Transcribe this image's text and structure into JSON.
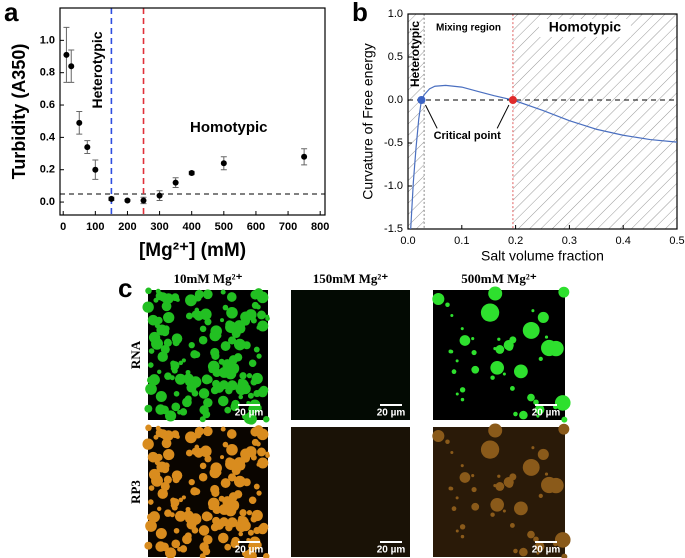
{
  "chart_data": [
    {
      "type": "scatter",
      "panel": "a",
      "xlabel": "[Mg²⁺] (mM)",
      "ylabel": "Turbidity (A350)",
      "x": [
        10,
        25,
        50,
        75,
        100,
        150,
        200,
        250,
        300,
        350,
        400,
        500,
        750
      ],
      "values": [
        0.91,
        0.84,
        0.49,
        0.34,
        0.2,
        0.02,
        0.01,
        0.01,
        0.04,
        0.12,
        0.18,
        0.24,
        0.28
      ],
      "errors": [
        0.17,
        0.1,
        0.07,
        0.04,
        0.06,
        0.01,
        0.005,
        0.02,
        0.03,
        0.03,
        0.01,
        0.04,
        0.05
      ],
      "color": "#000000",
      "xlim": [
        -10,
        815
      ],
      "ylim": [
        -0.08,
        1.2
      ],
      "xticks": [
        0,
        100,
        200,
        300,
        400,
        500,
        600,
        700,
        800
      ],
      "yticks": [
        {
          "value": 0,
          "label": "0.0"
        },
        0.2,
        0.4,
        0.6,
        0.8,
        {
          "value": 1,
          "label": "1.0"
        }
      ],
      "hlines": [
        0.05
      ],
      "vlines": [
        {
          "value": 150,
          "color": "#2f4fe0"
        },
        {
          "value": 250,
          "color": "#e0303a"
        }
      ],
      "annotations": [
        "Heterotypic",
        "Homotypic"
      ]
    },
    {
      "type": "line",
      "panel": "b",
      "xlabel": "Salt volume fraction",
      "ylabel": "Curvature of Free energy",
      "x": [
        0.005,
        0.01,
        0.015,
        0.02,
        0.025,
        0.03,
        0.04,
        0.05,
        0.07,
        0.1,
        0.13,
        0.16,
        0.195,
        0.25,
        0.3,
        0.35,
        0.4,
        0.45,
        0.5
      ],
      "values": [
        -1.5,
        -0.95,
        -0.55,
        -0.22,
        0,
        0.06,
        0.13,
        0.16,
        0.17,
        0.15,
        0.1,
        0.05,
        0,
        -0.12,
        -0.24,
        -0.34,
        -0.41,
        -0.46,
        -0.49
      ],
      "color": "#4a6fc0",
      "xlim": [
        0,
        0.5
      ],
      "ylim": [
        -1.5,
        1
      ],
      "xticks": [
        {
          "value": 0,
          "label": "0.0"
        },
        0.1,
        0.2,
        0.3,
        0.4,
        0.5
      ],
      "yticks": [
        -1.5,
        {
          "value": -1,
          "label": "-1.0"
        },
        -0.5,
        {
          "value": 0,
          "label": "0.0"
        },
        0.5,
        {
          "value": 1,
          "label": "1.0"
        }
      ],
      "hlines": [
        0
      ],
      "regions": [
        {
          "label": "Heterotypic",
          "x": [
            0,
            0.03
          ]
        },
        {
          "label": "Homotypic",
          "x": [
            0.195,
            0.5
          ]
        }
      ],
      "mixing_label": "Mixing region",
      "points": {
        "x": [
          0.025,
          0.195
        ],
        "values": [
          0,
          0
        ],
        "colors": [
          "#3b63c4",
          "#e02b2b"
        ]
      },
      "point_label": "Critical point"
    }
  ],
  "panel_c": {
    "label": "c",
    "columns": [
      "10mM Mg²⁺",
      "150mM Mg²⁺",
      "500mM Mg²⁺"
    ],
    "rows": [
      "RNA",
      "RP3"
    ],
    "scale_bar": "20 µm"
  }
}
